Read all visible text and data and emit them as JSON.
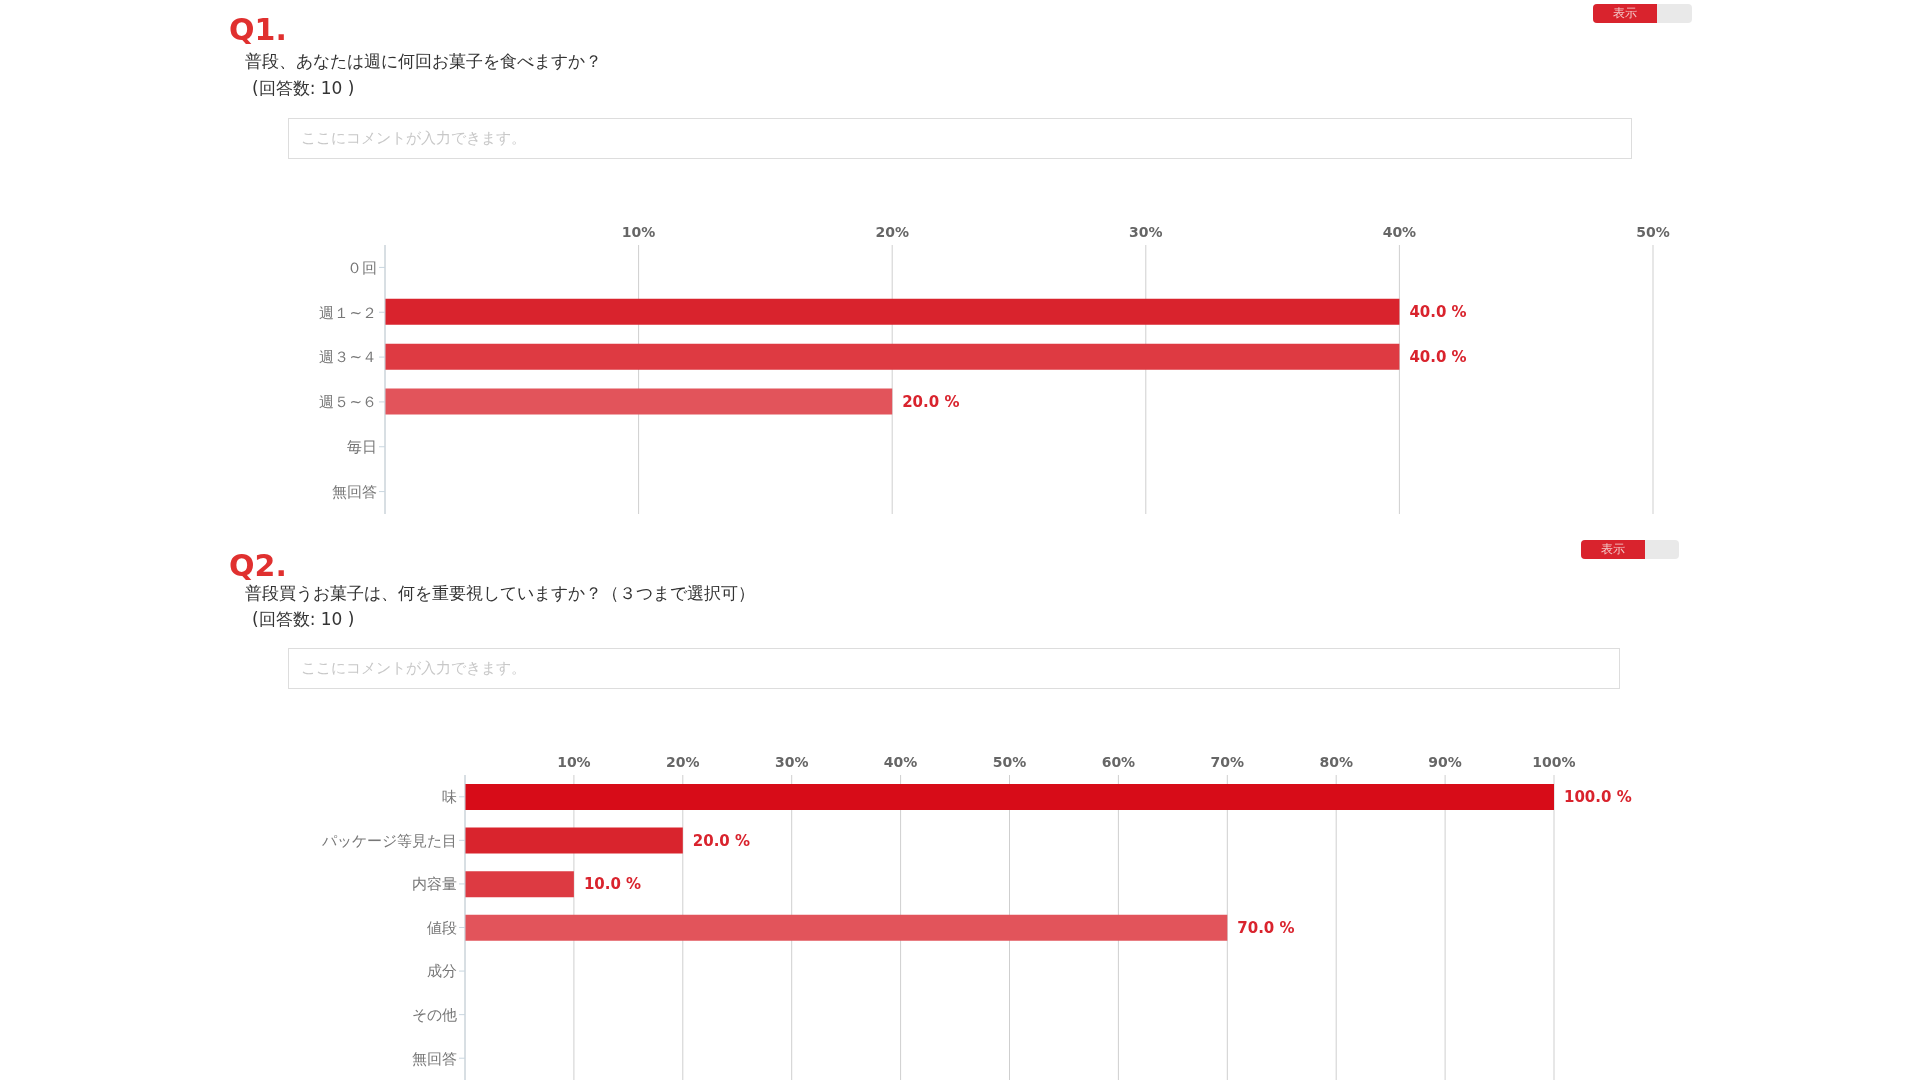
{
  "chart_data": [
    {
      "type": "bar",
      "orientation": "horizontal",
      "title": "Q1.",
      "subtitle": "普段、あなたは週に何回お菓子を食べますか？",
      "annotations": [
        "(回答数: 10 )",
        "ここにコメントが入力できます。",
        "表示"
      ],
      "categories": [
        "０回",
        "週１~２",
        "週３~４",
        "週５~６",
        "毎日",
        "無回答"
      ],
      "values": [
        0,
        40,
        40,
        20,
        0,
        0
      ],
      "colors": [
        "#d9232d",
        "#d9232d",
        "#de3a42",
        "#e2545b",
        "#e2545b",
        "#e2545b"
      ],
      "value_labels": [
        null,
        "40.0 %",
        "40.0 %",
        "20.0 %",
        null,
        null
      ],
      "xlim": [
        0,
        50
      ],
      "xticks": [
        {
          "value": 10,
          "label": "10%"
        },
        {
          "value": 20,
          "label": "20%"
        },
        {
          "value": 30,
          "label": "30%"
        },
        {
          "value": 40,
          "label": "40%"
        },
        {
          "value": 50,
          "label": "50%"
        }
      ],
      "grid": "x"
    },
    {
      "type": "bar",
      "orientation": "horizontal",
      "title": "Q2.",
      "subtitle": "普段買うお菓子は、何を重要視していますか？（３つまで選択可）",
      "annotations": [
        "(回答数: 10 )",
        "ここにコメントが入力できます。",
        "表示"
      ],
      "categories": [
        "味",
        "パッケージ等見た目",
        "内容量",
        "値段",
        "成分",
        "その他",
        "無回答"
      ],
      "values": [
        100,
        20,
        10,
        70,
        0,
        0,
        0
      ],
      "colors": [
        "#d70c18",
        "#d9242d",
        "#dd3a42",
        "#e2545b",
        "#e2545b",
        "#e2545b",
        "#e2545b"
      ],
      "value_labels": [
        "100.0 %",
        "20.0 %",
        "10.0 %",
        "70.0 %",
        null,
        null,
        null
      ],
      "xlim": [
        0,
        100
      ],
      "xticks": [
        {
          "value": 10,
          "label": "10%"
        },
        {
          "value": 20,
          "label": "20%"
        },
        {
          "value": 30,
          "label": "30%"
        },
        {
          "value": 40,
          "label": "40%"
        },
        {
          "value": 50,
          "label": "50%"
        },
        {
          "value": 60,
          "label": "60%"
        },
        {
          "value": 70,
          "label": "70%"
        },
        {
          "value": 80,
          "label": "80%"
        },
        {
          "value": 90,
          "label": "90%"
        },
        {
          "value": 100,
          "label": "100%"
        }
      ],
      "grid": "x"
    }
  ]
}
